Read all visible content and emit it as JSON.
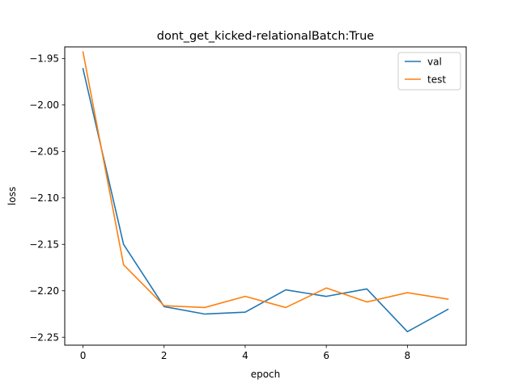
{
  "chart_data": {
    "type": "line",
    "title": "dont_get_kicked-relationalBatch:True",
    "xlabel": "epoch",
    "ylabel": "loss",
    "x": [
      0,
      1,
      2,
      3,
      4,
      5,
      6,
      7,
      8,
      9
    ],
    "xlim": [
      -0.45,
      9.45
    ],
    "ylim": [
      -2.2585,
      -1.9375
    ],
    "xticks": [
      0,
      2,
      4,
      6,
      8
    ],
    "xtick_labels": [
      "0",
      "2",
      "4",
      "6",
      "8"
    ],
    "yticks": [
      -1.95,
      -2.0,
      -2.05,
      -2.1,
      -2.15,
      -2.2,
      -2.25
    ],
    "ytick_labels": [
      "−1.95",
      "−2.00",
      "−2.05",
      "−2.10",
      "−2.15",
      "−2.20",
      "−2.25"
    ],
    "grid": false,
    "legend_position": "top-right",
    "series": [
      {
        "name": "val",
        "color": "#1f77b4",
        "values": [
          -1.961,
          -2.15,
          -2.217,
          -2.225,
          -2.223,
          -2.199,
          -2.206,
          -2.198,
          -2.244,
          -2.22
        ]
      },
      {
        "name": "test",
        "color": "#ff7f0e",
        "values": [
          -1.943,
          -2.172,
          -2.216,
          -2.218,
          -2.206,
          -2.218,
          -2.197,
          -2.212,
          -2.202,
          -2.209
        ]
      }
    ]
  }
}
